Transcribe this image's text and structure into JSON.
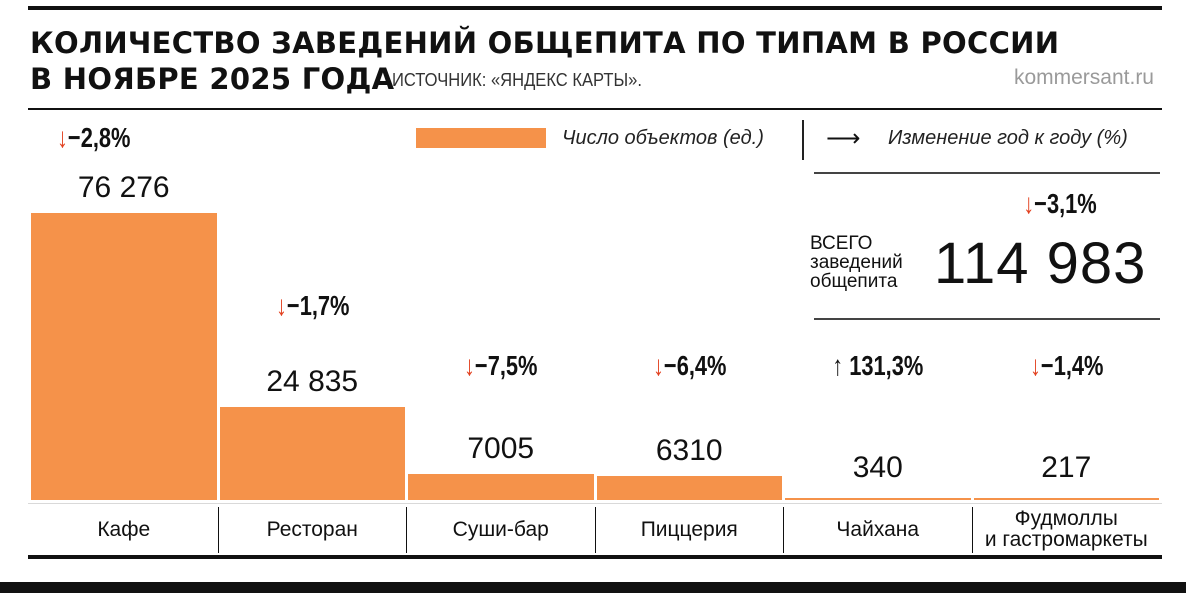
{
  "header": {
    "title_line1": "КОЛИЧЕСТВО ЗАВЕДЕНИЙ ОБЩЕПИТА ПО ТИПАМ В РОССИИ",
    "title_line2": "В НОЯБРЕ 2025 ГОДА",
    "source": "ИСТОЧНИК: «ЯНДЕКС КАРТЫ».",
    "brand": "kommersant.ru"
  },
  "legend": {
    "bar_label": "Число объектов (ед.)",
    "change_label": "Изменение год к году (%)",
    "arrow_glyph": "⟶"
  },
  "total": {
    "label": "ВСЕГО\nзаведений\nобщепита",
    "value": "114 983",
    "change": "−3,1%",
    "direction": "down"
  },
  "colors": {
    "bar": "#f5924a",
    "arrow_down": "#e2401f",
    "text": "#111111"
  },
  "chart_data": {
    "type": "bar",
    "title": "КОЛИЧЕСТВО ЗАВЕДЕНИЙ ОБЩЕПИТА ПО ТИПАМ В РОССИИ В НОЯБРЕ 2025 ГОДА",
    "xlabel": "",
    "ylabel": "",
    "ylim": [
      0,
      76276
    ],
    "grid": false,
    "legend_placement": "top",
    "categories": [
      "Кафе",
      "Ресторан",
      "Суши-бар",
      "Пиццерия",
      "Чайхана",
      "Фудмоллы\nи гастромаркеты"
    ],
    "values": [
      76276,
      24835,
      7005,
      6310,
      340,
      217
    ],
    "value_labels": [
      "76 276",
      "24 835",
      "7005",
      "6310",
      "340",
      "217"
    ],
    "changes": [
      "−2,8%",
      "−1,7%",
      "−7,5%",
      "−6,4%",
      "131,3%",
      "−1,4%"
    ],
    "change_directions": [
      "down",
      "down",
      "down",
      "down",
      "up",
      "down"
    ]
  }
}
